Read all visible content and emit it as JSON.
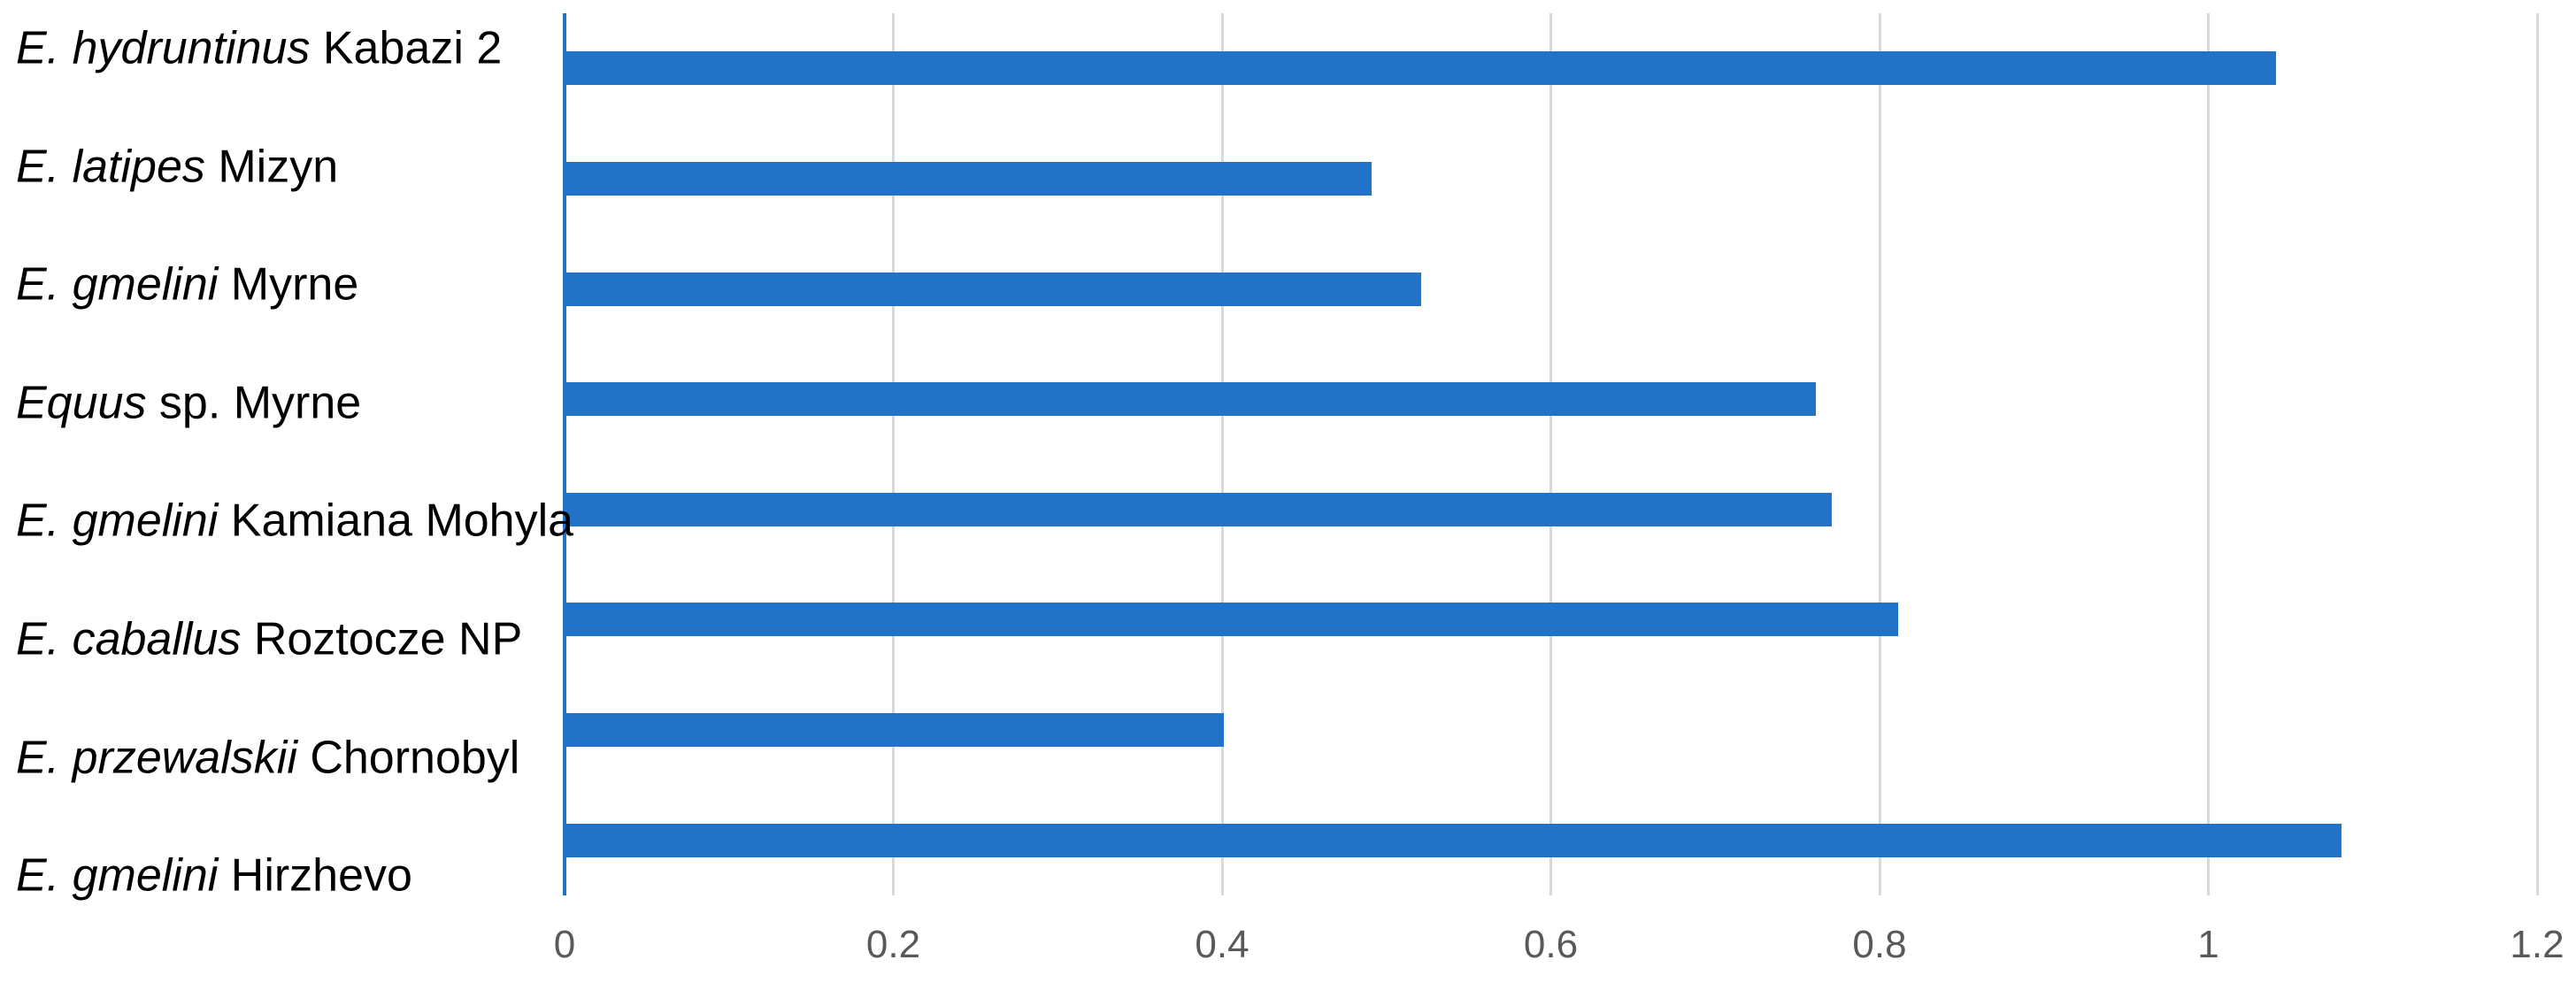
{
  "chart_data": {
    "type": "bar",
    "orientation": "horizontal",
    "title": "",
    "xlabel": "",
    "ylabel": "",
    "xlim": [
      0,
      1.2
    ],
    "x_tick_labels": [
      "0",
      "0.2",
      "0.4",
      "0.6",
      "0.8",
      "1",
      "1.2"
    ],
    "grid": "vertical-gridlines-on",
    "legend_position": "none",
    "categories": [
      {
        "label": "E. hydruntinus Kabazi 2",
        "italic": "E. hydruntinus",
        "rest": "Kabazi 2"
      },
      {
        "label": "E. latipes Mizyn",
        "italic": "E. latipes",
        "rest": "Mizyn"
      },
      {
        "label": "E. gmelini Myrne",
        "italic": "E. gmelini",
        "rest": "Myrne"
      },
      {
        "label": "Equus sp. Myrne",
        "italic": "Equus",
        "rest": "sp. Myrne"
      },
      {
        "label": "E. gmelini Kamiana Mohyla",
        "italic": "E. gmelini",
        "rest": "Kamiana Mohyla"
      },
      {
        "label": "E. caballus Roztocze NP",
        "italic": "E. caballus",
        "rest": "Roztocze NP"
      },
      {
        "label": "E. przewalskii Chornobyl",
        "italic": "E. przewalskii",
        "rest": "Chornobyl"
      },
      {
        "label": "E. gmelini Hirzhevo",
        "italic": "E. gmelini",
        "rest": "Hirzhevo"
      }
    ],
    "values": [
      1.04,
      0.49,
      0.52,
      0.76,
      0.77,
      0.81,
      0.4,
      1.08
    ]
  },
  "colors": {
    "bar": "#2273C8",
    "axis_line": "#2273C8",
    "gridline": "#D9D9D9",
    "tick_text": "#595959",
    "label_text": "#000000",
    "background": "#FFFFFF"
  }
}
